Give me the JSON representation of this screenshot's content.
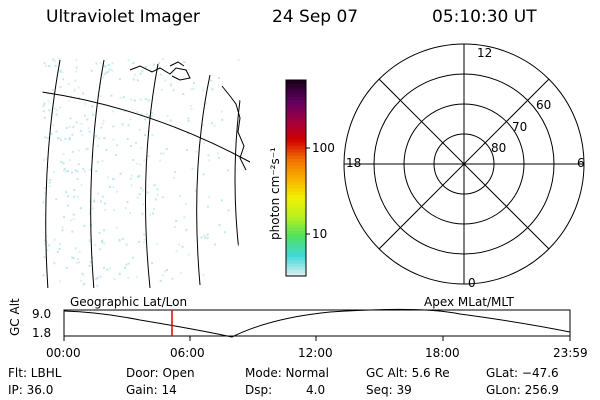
{
  "header": {
    "instrument": "Ultraviolet Imager",
    "date": "24 Sep 07",
    "time": "05:10:30 UT"
  },
  "colorbar": {
    "title": "photon cm⁻²s⁻¹",
    "ticks": [
      "100",
      "10"
    ],
    "colors": [
      "#d9eef0",
      "#40d8d8",
      "#4fe060",
      "#b8f020",
      "#f0f000",
      "#f8b000",
      "#f07000",
      "#d00000",
      "#a00040",
      "#600060",
      "#200020"
    ]
  },
  "polar_plot": {
    "mlt_labels": {
      "top": "12",
      "left": "18",
      "right": "6",
      "bottom": "0"
    },
    "lat_labels": [
      "60",
      "70",
      "80"
    ]
  },
  "timeline": {
    "left_label": "Geographic Lat/Lon",
    "right_label": "Apex MLat/MLT",
    "axis_label": "GC Alt",
    "y_max": "9.0",
    "y_min": "1.8",
    "x_ticks": [
      "00:00",
      "06:00",
      "12:00",
      "18:00",
      "23:59"
    ],
    "marker_color": "#e00000"
  },
  "status": {
    "flt": "Flt: LBHL",
    "ip": "IP: 36.0",
    "door": "Door: Open",
    "gain": "Gain: 14",
    "mode": "Mode: Normal",
    "dsp_label": "Dsp:",
    "dsp_value": "4.0",
    "gc_alt": "GC Alt: 5.6 Re",
    "seq": "Seq: 39",
    "glat": "GLat: −47.6",
    "glon": "GLon: 256.9"
  }
}
